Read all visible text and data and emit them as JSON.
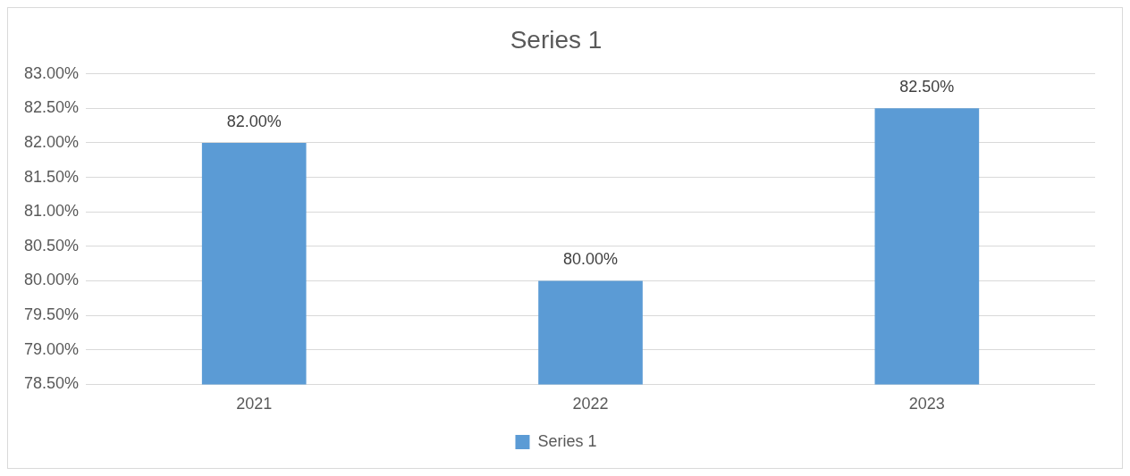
{
  "chart_data": {
    "type": "bar",
    "title": "Series 1",
    "categories": [
      "2021",
      "2022",
      "2023"
    ],
    "series": [
      {
        "name": "Series 1",
        "color": "#5b9bd5",
        "values": [
          82,
          80,
          82.5
        ],
        "value_labels": [
          "82.00%",
          "80.00%",
          "82.50%"
        ]
      }
    ],
    "ylim": [
      78.5,
      83
    ],
    "yticks": [
      {
        "value": 78.5,
        "label": "78.50%"
      },
      {
        "value": 79,
        "label": "79.00%"
      },
      {
        "value": 79.5,
        "label": "79.50%"
      },
      {
        "value": 80,
        "label": "80.00%"
      },
      {
        "value": 80.5,
        "label": "80.50%"
      },
      {
        "value": 81,
        "label": "81.00%"
      },
      {
        "value": 81.5,
        "label": "81.50%"
      },
      {
        "value": 82,
        "label": "82.00%"
      },
      {
        "value": 82.5,
        "label": "82.50%"
      },
      {
        "value": 83,
        "label": "83.00%"
      }
    ],
    "grid": "y",
    "legend": "bottom"
  }
}
